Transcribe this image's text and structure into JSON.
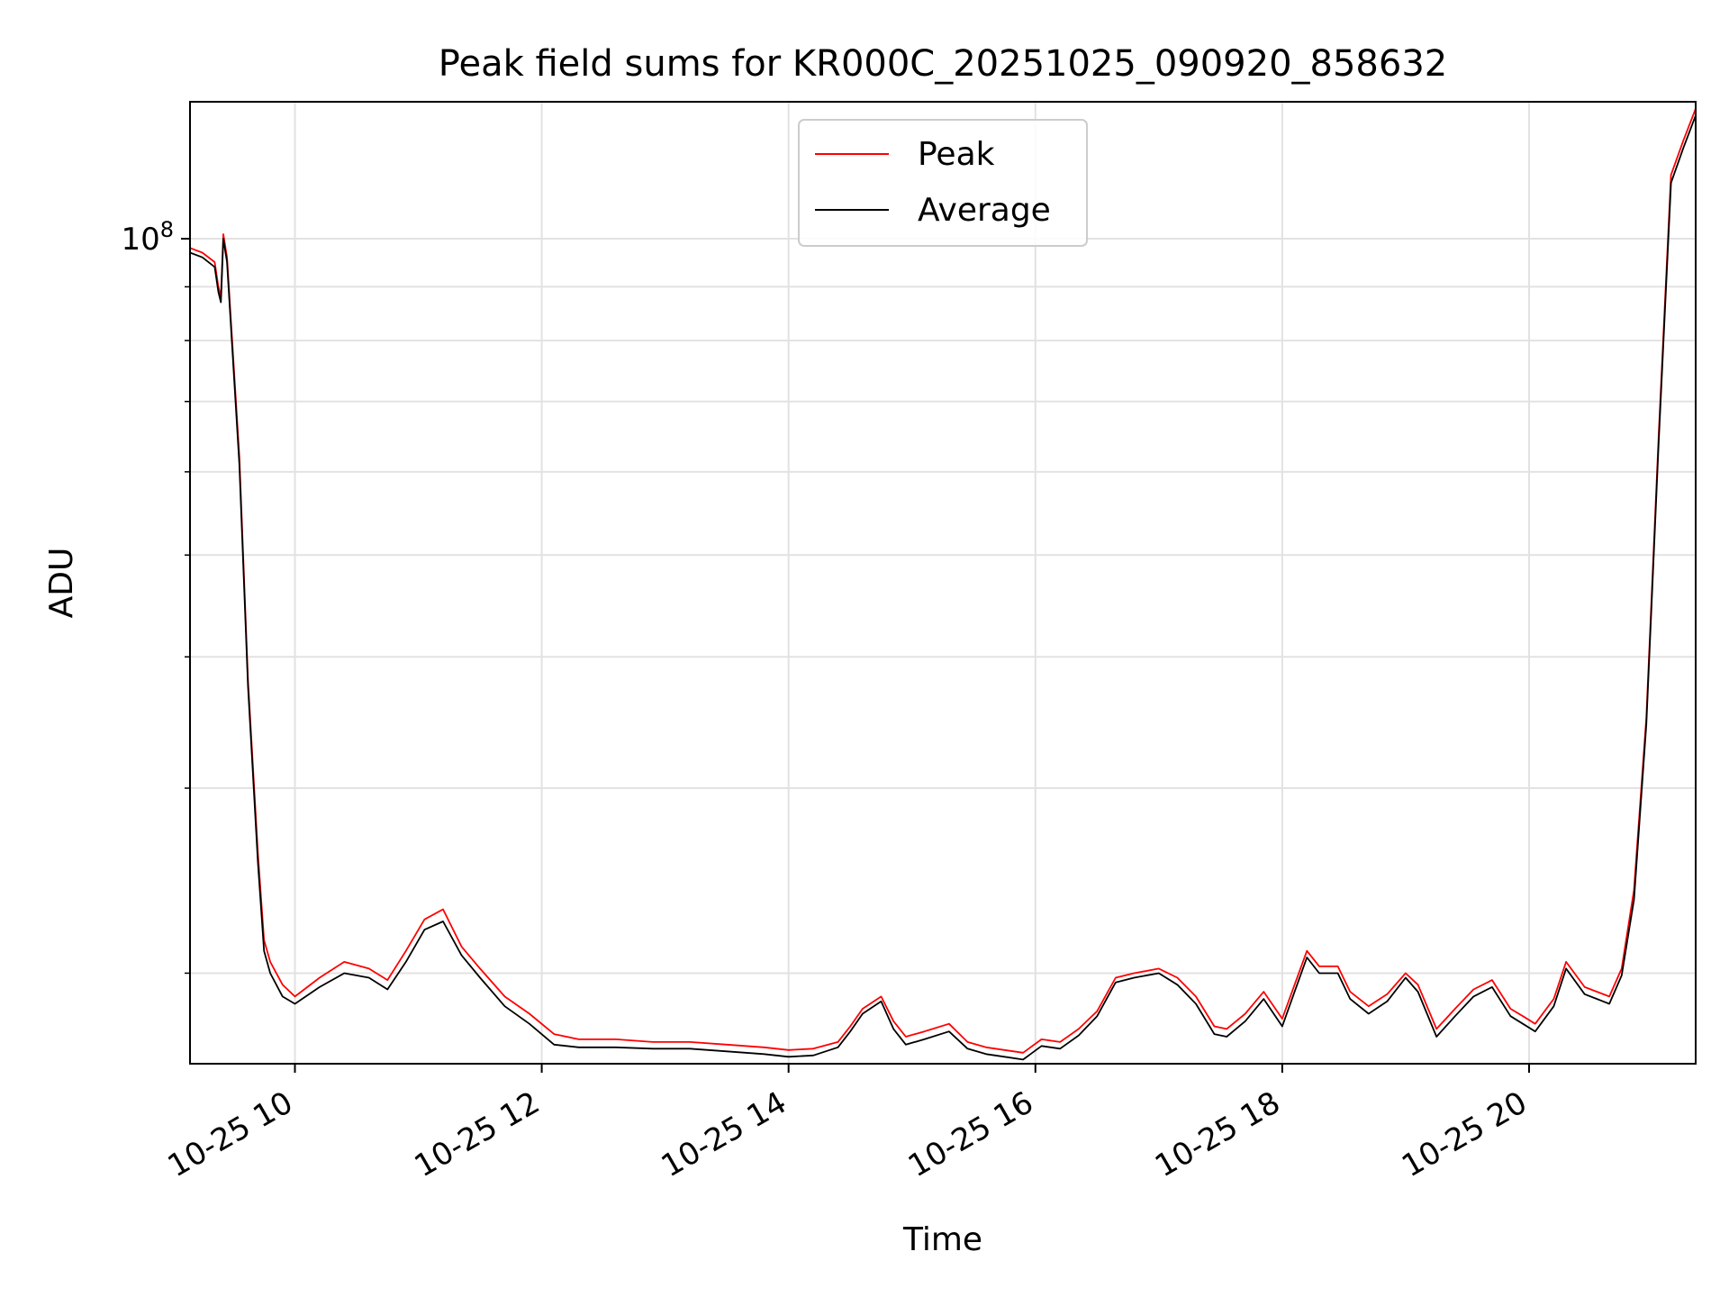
{
  "chart_data": {
    "type": "line",
    "title": "Peak field sums for KR000C_20251025_090920_858632",
    "xlabel": "Time",
    "ylabel": "ADU",
    "yscale": "log",
    "xlim_hours": [
      9.15,
      21.35
    ],
    "ylim": [
      16400000,
      135000000
    ],
    "x_ticks": [
      {
        "value": 10,
        "label": "10-25 10"
      },
      {
        "value": 12,
        "label": "10-25 12"
      },
      {
        "value": 14,
        "label": "10-25 14"
      },
      {
        "value": 16,
        "label": "10-25 16"
      },
      {
        "value": 18,
        "label": "10-25 18"
      },
      {
        "value": 20,
        "label": "10-25 20"
      }
    ],
    "y_major_tick": {
      "value": 100000000,
      "base": "10",
      "exp": "8"
    },
    "y_minor_ticks": [
      20000000,
      30000000,
      40000000,
      50000000,
      60000000,
      70000000,
      80000000,
      90000000
    ],
    "grid": true,
    "legend": {
      "position": "top-center",
      "entries": [
        {
          "name": "Peak",
          "color": "#ff0000"
        },
        {
          "name": "Average",
          "color": "#000000"
        }
      ]
    },
    "series": [
      {
        "name": "Peak",
        "color": "#ff0000",
        "x": [
          9.15,
          9.25,
          9.35,
          9.38,
          9.4,
          9.42,
          9.45,
          9.55,
          9.62,
          9.7,
          9.75,
          9.8,
          9.9,
          10.0,
          10.2,
          10.4,
          10.6,
          10.75,
          10.9,
          11.05,
          11.2,
          11.35,
          11.5,
          11.7,
          11.9,
          12.1,
          12.3,
          12.6,
          12.9,
          13.2,
          13.5,
          13.8,
          14.0,
          14.2,
          14.4,
          14.5,
          14.6,
          14.75,
          14.85,
          14.95,
          15.1,
          15.3,
          15.45,
          15.6,
          15.75,
          15.9,
          16.05,
          16.2,
          16.35,
          16.5,
          16.65,
          16.8,
          17.0,
          17.15,
          17.3,
          17.45,
          17.55,
          17.7,
          17.85,
          18.0,
          18.1,
          18.2,
          18.3,
          18.45,
          18.55,
          18.7,
          18.85,
          19.0,
          19.1,
          19.25,
          19.4,
          19.55,
          19.7,
          19.85,
          19.95,
          20.05,
          20.2,
          20.3,
          20.45,
          20.55,
          20.65,
          20.75,
          20.85,
          20.95,
          21.05,
          21.15,
          21.25,
          21.35
        ],
        "y": [
          98000000,
          97000000,
          95000000,
          90000000,
          88000000,
          101000000,
          96000000,
          62000000,
          38000000,
          26000000,
          21500000,
          20500000,
          19500000,
          19000000,
          19800000,
          20500000,
          20200000,
          19700000,
          21000000,
          22500000,
          23000000,
          21200000,
          20200000,
          19000000,
          18300000,
          17500000,
          17300000,
          17300000,
          17200000,
          17200000,
          17100000,
          17000000,
          16900000,
          16950000,
          17200000,
          17800000,
          18500000,
          19000000,
          18000000,
          17400000,
          17600000,
          17900000,
          17200000,
          17000000,
          16900000,
          16800000,
          17300000,
          17200000,
          17700000,
          18400000,
          19800000,
          20000000,
          20200000,
          19800000,
          19000000,
          17800000,
          17700000,
          18300000,
          19200000,
          18100000,
          19500000,
          21000000,
          20300000,
          20300000,
          19200000,
          18600000,
          19100000,
          20000000,
          19500000,
          17700000,
          18500000,
          19300000,
          19700000,
          18500000,
          18200000,
          17900000,
          18900000,
          20500000,
          19400000,
          19200000,
          19000000,
          20200000,
          24000000,
          35000000,
          65000000,
          115000000,
          124000000,
          133000000
        ]
      },
      {
        "name": "Average",
        "color": "#000000",
        "x": [
          9.15,
          9.25,
          9.35,
          9.38,
          9.4,
          9.42,
          9.45,
          9.55,
          9.62,
          9.7,
          9.75,
          9.8,
          9.9,
          10.0,
          10.2,
          10.4,
          10.6,
          10.75,
          10.9,
          11.05,
          11.2,
          11.35,
          11.5,
          11.7,
          11.9,
          12.1,
          12.3,
          12.6,
          12.9,
          13.2,
          13.5,
          13.8,
          14.0,
          14.2,
          14.4,
          14.5,
          14.6,
          14.75,
          14.85,
          14.95,
          15.1,
          15.3,
          15.45,
          15.6,
          15.75,
          15.9,
          16.05,
          16.2,
          16.35,
          16.5,
          16.65,
          16.8,
          17.0,
          17.15,
          17.3,
          17.45,
          17.55,
          17.7,
          17.85,
          18.0,
          18.1,
          18.2,
          18.3,
          18.45,
          18.55,
          18.7,
          18.85,
          19.0,
          19.1,
          19.25,
          19.4,
          19.55,
          19.7,
          19.85,
          19.95,
          20.05,
          20.2,
          20.3,
          20.45,
          20.55,
          20.65,
          20.75,
          20.85,
          20.95,
          21.05,
          21.15,
          21.25,
          21.35
        ],
        "y": [
          97000000,
          96000000,
          94000000,
          89000000,
          87000000,
          100000000,
          95000000,
          61000000,
          37500000,
          25500000,
          21000000,
          20000000,
          19000000,
          18700000,
          19400000,
          20000000,
          19800000,
          19300000,
          20500000,
          22000000,
          22400000,
          20800000,
          19800000,
          18600000,
          17900000,
          17100000,
          17000000,
          17000000,
          16950000,
          16950000,
          16850000,
          16750000,
          16650000,
          16700000,
          17000000,
          17600000,
          18300000,
          18800000,
          17700000,
          17100000,
          17300000,
          17600000,
          16950000,
          16750000,
          16650000,
          16550000,
          17050000,
          16950000,
          17450000,
          18200000,
          19600000,
          19800000,
          20000000,
          19500000,
          18700000,
          17500000,
          17400000,
          18000000,
          18900000,
          17800000,
          19200000,
          20700000,
          20000000,
          20000000,
          18900000,
          18300000,
          18800000,
          19800000,
          19200000,
          17400000,
          18200000,
          19000000,
          19400000,
          18200000,
          17900000,
          17600000,
          18600000,
          20200000,
          19100000,
          18900000,
          18700000,
          19900000,
          23500000,
          34500000,
          64000000,
          113000000,
          122000000,
          131000000
        ]
      }
    ]
  }
}
